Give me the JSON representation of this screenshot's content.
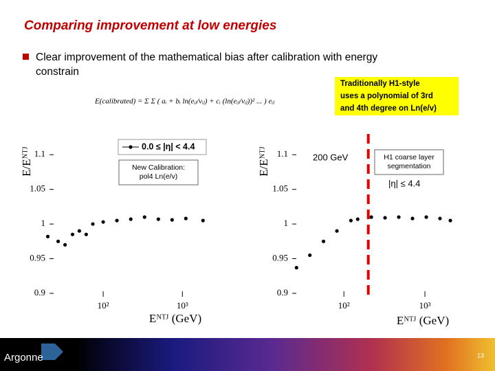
{
  "header": {
    "title": "Comparing improvement at low energies"
  },
  "bullet": [
    "Clear improvement of the mathematical bias after calibration with energy",
    "constrain"
  ],
  "formula": "E(calibrated) = Σ Σ ( aᵢ + bᵢ ln(eᵢⱼ/vᵢⱼ) + cᵢ (ln(eᵢⱼ/vᵢⱼ))² ... ) eᵢⱼ",
  "note": [
    "Traditionally H1-style",
    "uses a polynomial of 3rd",
    "and 4th degree on Ln(e/v)"
  ],
  "footer": {
    "logo": "Argonne",
    "page": "13"
  },
  "chart_data": [
    {
      "type": "scatter",
      "xscale": "log",
      "x": [
        20,
        27,
        33,
        41,
        50,
        61,
        74,
        100,
        149,
        223,
        333,
        497,
        741,
        1105,
        1820
      ],
      "series": [
        {
          "name": "0.0 ≤ |η| < 4.4",
          "color": "#000000",
          "values": [
            0.982,
            0.975,
            0.97,
            0.985,
            0.99,
            0.985,
            1.0,
            1.003,
            1.005,
            1.007,
            1.01,
            1.007,
            1.006,
            1.008,
            1.005
          ]
        }
      ],
      "xlim": [
        21,
        2000
      ],
      "ylim": [
        0.895,
        1.12
      ],
      "xticks": [
        {
          "value": 100,
          "label": "10²"
        },
        {
          "value": 1000,
          "label": "10³"
        }
      ],
      "yticks": [
        0.9,
        0.95,
        1,
        1.05,
        1.1
      ],
      "xlabel": "Eᴺᵀᴶ (GeV)",
      "ylabel": "E/Eᴺᵀᴶ",
      "annotations": [
        {
          "lines": [
            "New Calibration:",
            "pol4 Ln(e/v)"
          ]
        }
      ]
    },
    {
      "type": "scatter",
      "xscale": "log",
      "x": [
        26,
        38,
        56,
        82,
        122,
        148,
        218,
        322,
        476,
        703,
        1040,
        1535,
        2060
      ],
      "series": [
        {
          "color": "#000000",
          "values": [
            0.937,
            0.955,
            0.975,
            0.99,
            1.005,
            1.007,
            1.01,
            1.009,
            1.01,
            1.008,
            1.01,
            1.008,
            1.005
          ]
        }
      ],
      "xlim": [
        23,
        2270
      ],
      "ylim": [
        0.895,
        1.12
      ],
      "xticks": [
        {
          "value": 100,
          "label": "10²"
        },
        {
          "value": 1000,
          "label": "10³"
        }
      ],
      "yticks": [
        0.9,
        0.95,
        1,
        1.05,
        1.1
      ],
      "xlabel": "Eᴺᵀᴶ (GeV)",
      "ylabel": "E/Eᴺᵀᴶ",
      "vline": {
        "value": 200,
        "color": "#e00000"
      },
      "annotations": [
        {
          "lines": [
            "200 GeV"
          ]
        },
        {
          "lines": [
            "H1 coarse layer",
            "segmentation"
          ]
        },
        {
          "lines": [
            "|η| ≤ 4.4"
          ]
        }
      ]
    }
  ]
}
